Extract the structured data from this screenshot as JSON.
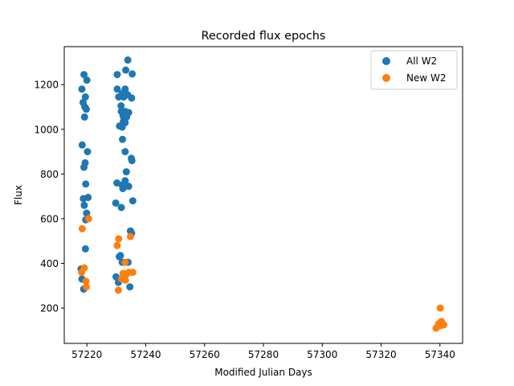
{
  "chart_data": {
    "type": "scatter",
    "title": "Recorded flux epochs",
    "xlabel": "Modified Julian Days",
    "ylabel": "Flux",
    "xlim": [
      57212.3,
      57347.7
    ],
    "ylim": [
      42,
      1370
    ],
    "xticks": [
      57220,
      57240,
      57260,
      57280,
      57300,
      57320,
      57340
    ],
    "yticks": [
      200,
      400,
      600,
      800,
      1000,
      1200
    ],
    "grid": false,
    "legend_position": "top-right",
    "series": [
      {
        "name": "All W2",
        "color": "#1f77b4",
        "points": [
          [
            57218.3,
            1180
          ],
          [
            57219.0,
            1245
          ],
          [
            57219.5,
            1145
          ],
          [
            57220.0,
            1220
          ],
          [
            57218.7,
            1120
          ],
          [
            57219.3,
            1100
          ],
          [
            57219.8,
            1090
          ],
          [
            57219.2,
            1055
          ],
          [
            57218.4,
            930
          ],
          [
            57220.2,
            900
          ],
          [
            57219.4,
            850
          ],
          [
            57219.0,
            830
          ],
          [
            57219.6,
            755
          ],
          [
            57220.4,
            695
          ],
          [
            57218.8,
            690
          ],
          [
            57219.1,
            660
          ],
          [
            57219.9,
            625
          ],
          [
            57219.6,
            595
          ],
          [
            57219.5,
            465
          ],
          [
            57218.0,
            375
          ],
          [
            57218.3,
            330
          ],
          [
            57218.9,
            285
          ],
          [
            57233.9,
            1310
          ],
          [
            57233.2,
            1265
          ],
          [
            57230.3,
            1245
          ],
          [
            57235.4,
            1248
          ],
          [
            57230.3,
            1180
          ],
          [
            57233.0,
            1180
          ],
          [
            57232.0,
            1160
          ],
          [
            57233.8,
            1155
          ],
          [
            57230.8,
            1145
          ],
          [
            57232.5,
            1145
          ],
          [
            57235.2,
            1140
          ],
          [
            57231.6,
            1105
          ],
          [
            57231.7,
            1080
          ],
          [
            57233.0,
            1080
          ],
          [
            57234.2,
            1075
          ],
          [
            57232.3,
            1060
          ],
          [
            57233.5,
            1055
          ],
          [
            57232.4,
            1035
          ],
          [
            57233.0,
            1030
          ],
          [
            57231.1,
            1015
          ],
          [
            57232.0,
            1010
          ],
          [
            57232.1,
            955
          ],
          [
            57233.0,
            900
          ],
          [
            57235.1,
            870
          ],
          [
            57235.3,
            860
          ],
          [
            57233.4,
            810
          ],
          [
            57230.2,
            760
          ],
          [
            57233.0,
            770
          ],
          [
            57232.0,
            750
          ],
          [
            57234.2,
            745
          ],
          [
            57232.5,
            740
          ],
          [
            57232.2,
            735
          ],
          [
            57235.6,
            680
          ],
          [
            57229.8,
            670
          ],
          [
            57231.7,
            650
          ],
          [
            57234.8,
            545
          ],
          [
            57235.2,
            535
          ],
          [
            57231.0,
            430
          ],
          [
            57231.4,
            435
          ],
          [
            57232.0,
            405
          ],
          [
            57234.0,
            405
          ],
          [
            57229.9,
            340
          ],
          [
            57232.7,
            345
          ],
          [
            57230.7,
            315
          ],
          [
            57234.6,
            295
          ]
        ]
      },
      {
        "name": "New W2",
        "color": "#ff7f0e",
        "points": [
          [
            57218.4,
            555
          ],
          [
            57220.6,
            600
          ],
          [
            57219.1,
            380
          ],
          [
            57218.2,
            360
          ],
          [
            57219.7,
            320
          ],
          [
            57219.8,
            295
          ],
          [
            57230.8,
            510
          ],
          [
            57234.8,
            520
          ],
          [
            57230.3,
            480
          ],
          [
            57233.0,
            405
          ],
          [
            57232.3,
            355
          ],
          [
            57233.7,
            355
          ],
          [
            57234.3,
            360
          ],
          [
            57235.6,
            360
          ],
          [
            57233.0,
            345
          ],
          [
            57231.8,
            330
          ],
          [
            57233.1,
            325
          ],
          [
            57230.7,
            280
          ],
          [
            57340.1,
            200
          ],
          [
            57340.5,
            140
          ],
          [
            57339.6,
            130
          ],
          [
            57340.9,
            128
          ],
          [
            57341.3,
            125
          ],
          [
            57338.7,
            110
          ],
          [
            57339.3,
            118
          ],
          [
            57340.2,
            122
          ]
        ]
      }
    ]
  }
}
